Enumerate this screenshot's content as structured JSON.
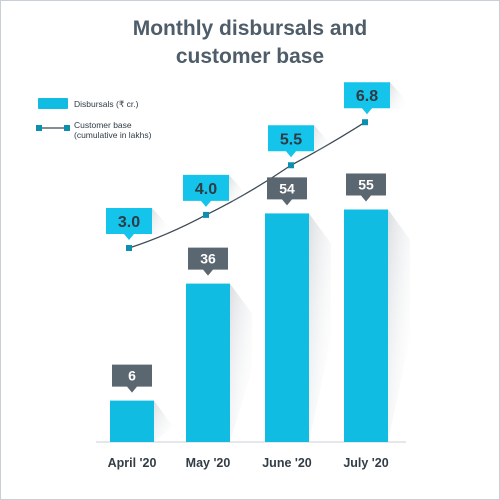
{
  "title_line1": "Monthly disbursals and",
  "title_line2": "customer base",
  "legend": {
    "bar_label": "Disbursals (₹ cr.)",
    "line_label_1": "Customer base",
    "line_label_2": "(cumulative in lakhs)"
  },
  "colors": {
    "bar": "#10bce2",
    "bar_label_box": "#5a6670",
    "line": "#3d4b56",
    "line_marker": "#0f8fb0",
    "line_label_box": "#14c4ea",
    "title": "#4e5d69"
  },
  "chart_data": {
    "type": "bar+line",
    "title": "Monthly disbursals and customer base",
    "categories": [
      "April '20",
      "May '20",
      "June '20",
      "July '20"
    ],
    "series": [
      {
        "name": "Disbursals (₹ cr.)",
        "type": "bar",
        "values": [
          6,
          36,
          54,
          55
        ]
      },
      {
        "name": "Customer base (cumulative in lakhs)",
        "type": "line",
        "values": [
          3.0,
          4.0,
          5.5,
          6.8
        ]
      }
    ],
    "bar_labels": [
      "6",
      "36",
      "54",
      "55"
    ],
    "line_labels": [
      "3.0",
      "4.0",
      "5.5",
      "6.8"
    ],
    "legend_position": "top-left",
    "grid": false
  }
}
